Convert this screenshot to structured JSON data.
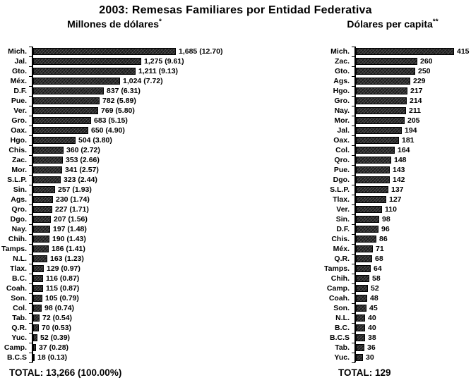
{
  "page": {
    "title": "2003: Remesas Familiares por Entidad Federativa"
  },
  "colors": {
    "bar": "#1b1b1b",
    "text": "#000000",
    "background": "#ffffff"
  },
  "chart_data": [
    {
      "type": "bar",
      "orientation": "horizontal",
      "title": "Millones de dólares",
      "title_marker": "*",
      "total_label": "TOTAL: 13,266 (100.00%)",
      "xlim": [
        0,
        1800
      ],
      "grid": false,
      "legend": false,
      "categories": [
        "Mich.",
        "Jal.",
        "Gto.",
        "Méx.",
        "D.F.",
        "Pue.",
        "Ver.",
        "Gro.",
        "Oax.",
        "Hgo.",
        "Chis.",
        "Zac.",
        "Mor.",
        "S.L.P.",
        "Sin.",
        "Ags.",
        "Qro.",
        "Dgo.",
        "Nay.",
        "Chih.",
        "Tamps.",
        "N.L.",
        "Tlax.",
        "B.C.",
        "Coah.",
        "Son.",
        "Col.",
        "Tab.",
        "Q.R.",
        "Yuc.",
        "Camp.",
        "B.C.S"
      ],
      "values": [
        1685,
        1275,
        1211,
        1024,
        837,
        782,
        769,
        683,
        650,
        504,
        360,
        353,
        341,
        323,
        257,
        230,
        227,
        207,
        197,
        190,
        186,
        163,
        129,
        116,
        115,
        105,
        98,
        72,
        70,
        52,
        37,
        18
      ],
      "value_labels": [
        "1,685 (12.70)",
        "1,275 (9.61)",
        "1,211 (9.13)",
        "1,024 (7.72)",
        "837 (6.31)",
        "782 (5.89)",
        "769 (5.80)",
        "683 (5.15)",
        "650 (4.90)",
        "504 (3.80)",
        "360 (2.72)",
        "353 (2.66)",
        "341 (2.57)",
        "323 (2.44)",
        "257 (1.93)",
        "230 (1.74)",
        "227 (1.71)",
        "207 (1.56)",
        "197 (1.48)",
        "190 (1.43)",
        "186 (1.41)",
        "163 (1.23)",
        "129 (0.97)",
        "116 (0.87)",
        "115 (0.87)",
        "105 (0.79)",
        "98 (0.74)",
        "72 (0.54)",
        "70 (0.53)",
        "52 (0.39)",
        "37 (0.28)",
        "18 (0.13)"
      ]
    },
    {
      "type": "bar",
      "orientation": "horizontal",
      "title": "Dólares per capita",
      "title_marker": "**",
      "total_label": "TOTAL: 129",
      "xlim": [
        0,
        430
      ],
      "grid": false,
      "legend": false,
      "categories": [
        "Mich.",
        "Zac.",
        "Gto.",
        "Ags.",
        "Hgo.",
        "Gro.",
        "Nay.",
        "Mor.",
        "Jal.",
        "Oax.",
        "Col.",
        "Qro.",
        "Pue.",
        "Dgo.",
        "S.L.P.",
        "Tlax.",
        "Ver.",
        "Sin.",
        "D.F.",
        "Chis.",
        "Méx.",
        "Q.R.",
        "Tamps.",
        "Chih.",
        "Camp.",
        "Coah.",
        "Son.",
        "N.L.",
        "B.C.",
        "B.C.S",
        "Tab.",
        "Yuc."
      ],
      "values": [
        415,
        260,
        250,
        229,
        217,
        214,
        211,
        205,
        194,
        181,
        164,
        148,
        143,
        142,
        137,
        127,
        110,
        98,
        96,
        86,
        71,
        68,
        64,
        58,
        52,
        48,
        45,
        40,
        40,
        38,
        36,
        30
      ],
      "value_labels": [
        "415",
        "260",
        "250",
        "229",
        "217",
        "214",
        "211",
        "205",
        "194",
        "181",
        "164",
        "148",
        "143",
        "142",
        "137",
        "127",
        "110",
        "98",
        "96",
        "86",
        "71",
        "68",
        "64",
        "58",
        "52",
        "48",
        "45",
        "40",
        "40",
        "38",
        "36",
        "30"
      ]
    }
  ]
}
